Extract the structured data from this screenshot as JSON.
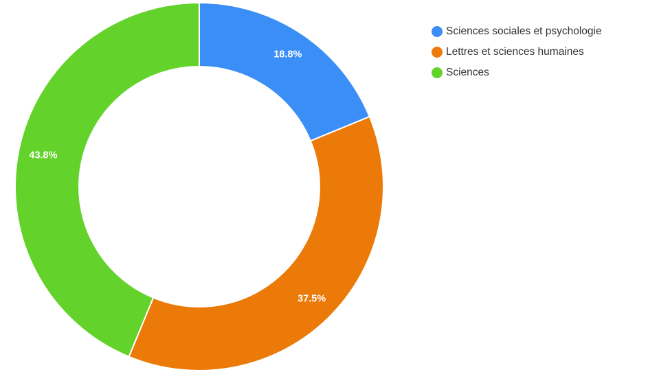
{
  "chart_data": {
    "type": "pie",
    "donut": true,
    "start": "12 o'clock",
    "direction": "clockwise",
    "legend_position": "top-right",
    "series": [
      {
        "name": "Sciences sociales et psychologie",
        "value": 18.8,
        "label": "18.8%",
        "color": "#3a8ef6"
      },
      {
        "name": "Lettres et sciences humaines",
        "value": 37.5,
        "label": "37.5%",
        "color": "#ec7a08"
      },
      {
        "name": "Sciences",
        "value": 43.8,
        "label": "43.8%",
        "color": "#63d22a"
      }
    ]
  }
}
